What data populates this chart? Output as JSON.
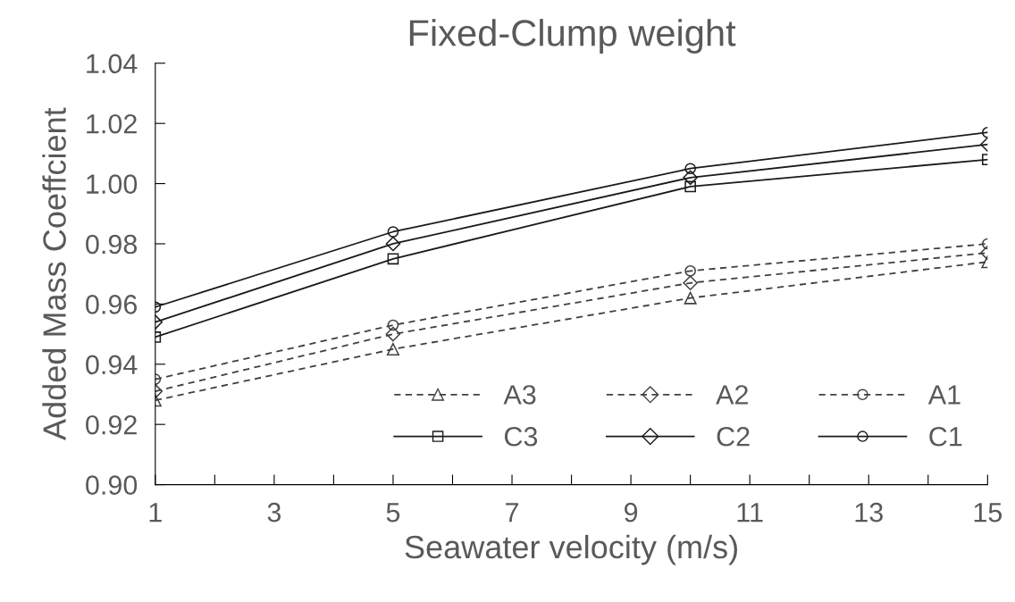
{
  "chart_data": {
    "type": "line",
    "title": "Fixed-Clump weight",
    "xlabel": "Seawater velocity (m/s)",
    "ylabel": "Added Mass Coeffcient",
    "x": [
      1,
      5,
      10,
      15
    ],
    "series": [
      {
        "name": "A3",
        "color": "#404040",
        "marker": "triangle",
        "line_style": "dashed",
        "values": [
          0.928,
          0.945,
          0.962,
          0.974
        ]
      },
      {
        "name": "A2",
        "color": "#404040",
        "marker": "diamond",
        "line_style": "dashed",
        "values": [
          0.931,
          0.95,
          0.967,
          0.977
        ]
      },
      {
        "name": "A1",
        "color": "#404040",
        "marker": "circle",
        "line_style": "dashed",
        "values": [
          0.935,
          0.953,
          0.971,
          0.98
        ]
      },
      {
        "name": "C3",
        "color": "#1a1a1a",
        "marker": "square",
        "line_style": "solid",
        "values": [
          0.949,
          0.975,
          0.999,
          1.008
        ]
      },
      {
        "name": "C2",
        "color": "#1a1a1a",
        "marker": "diamond",
        "line_style": "solid",
        "values": [
          0.954,
          0.98,
          1.002,
          1.013
        ]
      },
      {
        "name": "C1",
        "color": "#1a1a1a",
        "marker": "circle",
        "line_style": "solid",
        "values": [
          0.959,
          0.984,
          1.005,
          1.017
        ]
      }
    ],
    "xlim": [
      1,
      15
    ],
    "xticks": [
      1,
      {
        "value": 2,
        "label": null
      },
      3,
      {
        "value": 4,
        "label": null
      },
      5,
      {
        "value": 6,
        "label": null
      },
      7,
      {
        "value": 8,
        "label": null
      },
      9,
      {
        "value": 10,
        "label": null
      },
      11,
      {
        "value": 12,
        "label": null
      },
      13,
      {
        "value": 14,
        "label": null
      },
      15
    ],
    "ylim": [
      0.9,
      1.04
    ],
    "yticks": [
      {
        "value": 0.9,
        "label": "0.90"
      },
      {
        "value": 0.92,
        "label": "0.92"
      },
      {
        "value": 0.94,
        "label": "0.94"
      },
      {
        "value": 0.96,
        "label": "0.96"
      },
      {
        "value": 0.98,
        "label": "0.98"
      },
      {
        "value": 1.0,
        "label": "1.00"
      },
      {
        "value": 1.02,
        "label": "1.02"
      },
      {
        "value": 1.04,
        "label": "1.04"
      }
    ],
    "grid": false,
    "legend": "bottom right"
  }
}
